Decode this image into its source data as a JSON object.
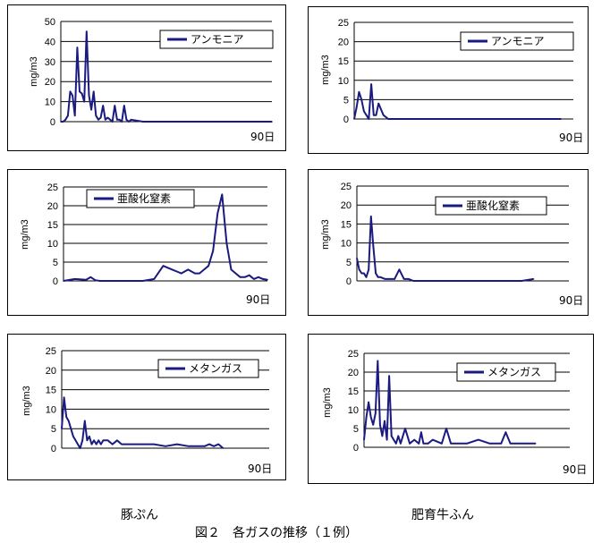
{
  "colors": {
    "series": "#1a1a80",
    "grid": "#000000"
  },
  "captions": {
    "left": "豚ぷん",
    "right": "肥育牛ふん",
    "figure": "図２　各ガスの推移（１例）"
  },
  "chart_data": [
    {
      "type": "line",
      "ylabel": "mg/m3",
      "xlabel": "90日",
      "ylim": [
        0,
        50
      ],
      "yticks": [
        0,
        10,
        20,
        30,
        40,
        50
      ],
      "xlim": [
        0,
        90
      ],
      "legend": "top-right",
      "series": [
        {
          "name": "アンモニア",
          "x": [
            0,
            1,
            2,
            3,
            4,
            5,
            6,
            7,
            8,
            9,
            10,
            11,
            12,
            13,
            14,
            15,
            16,
            17,
            18,
            19,
            20,
            21,
            22,
            23,
            24,
            25,
            26,
            27,
            28,
            29,
            30,
            35,
            40,
            45,
            50,
            55,
            60,
            65,
            70,
            75,
            80,
            85,
            90
          ],
          "values": [
            0,
            0,
            1,
            3,
            15,
            13,
            3,
            37,
            15,
            14,
            10,
            45,
            13,
            6,
            15,
            3,
            1,
            2,
            8,
            1,
            2,
            1,
            0,
            8,
            1,
            1,
            0,
            8,
            1,
            0,
            1,
            0,
            0,
            0,
            0,
            0,
            0,
            0,
            0,
            0,
            0,
            0,
            0
          ]
        }
      ]
    },
    {
      "type": "line",
      "ylabel": "mg/m3",
      "xlabel": "90日",
      "ylim": [
        0,
        25
      ],
      "yticks": [
        0,
        5,
        10,
        15,
        20,
        25
      ],
      "xlim": [
        0,
        90
      ],
      "legend": "top-right",
      "series": [
        {
          "name": "アンモニア",
          "x": [
            0,
            1,
            2,
            3,
            4,
            5,
            6,
            7,
            8,
            9,
            10,
            12,
            14,
            16,
            20,
            30,
            40,
            50,
            60,
            70,
            80,
            85
          ],
          "values": [
            0,
            3,
            7,
            5,
            2,
            1,
            0,
            9,
            1,
            1,
            4,
            1,
            0,
            0,
            0,
            0,
            0,
            0,
            0,
            0,
            0,
            0
          ]
        }
      ]
    },
    {
      "type": "line",
      "ylabel": "mg/m3",
      "xlabel": "90日",
      "ylim": [
        0,
        25
      ],
      "yticks": [
        0,
        5,
        10,
        15,
        20,
        25
      ],
      "xlim": [
        0,
        90
      ],
      "legend": "top-left",
      "series": [
        {
          "name": "亜酸化窒素",
          "x": [
            0,
            5,
            10,
            12,
            14,
            16,
            20,
            25,
            30,
            35,
            40,
            44,
            46,
            48,
            50,
            52,
            55,
            58,
            60,
            62,
            64,
            66,
            68,
            70,
            72,
            74,
            76,
            78,
            80,
            82,
            84,
            86,
            88,
            90
          ],
          "values": [
            0,
            0.5,
            0.3,
            1,
            0.2,
            0,
            0,
            0,
            0,
            0,
            0.5,
            4,
            3.5,
            3,
            2.5,
            2,
            3,
            2,
            2,
            3,
            4,
            8,
            18,
            23,
            10,
            3,
            2,
            1,
            1,
            1.5,
            0.5,
            1,
            0.5,
            0.3
          ]
        }
      ]
    },
    {
      "type": "line",
      "ylabel": "mg/m3",
      "xlabel": "90日",
      "ylim": [
        0,
        25
      ],
      "yticks": [
        0,
        5,
        10,
        15,
        20,
        25
      ],
      "xlim": [
        0,
        90
      ],
      "legend": "top-right",
      "series": [
        {
          "name": "亜酸化窒素",
          "x": [
            0,
            1,
            2,
            3,
            4,
            5,
            6,
            7,
            8,
            9,
            10,
            12,
            14,
            16,
            18,
            20,
            22,
            24,
            30,
            40,
            50,
            60,
            70,
            75
          ],
          "values": [
            6,
            3,
            2,
            2,
            1,
            3,
            17,
            9,
            2,
            1,
            1,
            0.5,
            0.5,
            0.5,
            3,
            0.5,
            0.5,
            0,
            0,
            0,
            0,
            0,
            0,
            0.5
          ]
        }
      ]
    },
    {
      "type": "line",
      "ylabel": "mg/m3",
      "xlabel": "90日",
      "ylim": [
        0,
        25
      ],
      "yticks": [
        0,
        5,
        10,
        15,
        20,
        25
      ],
      "xlim": [
        0,
        90
      ],
      "legend": "top-right",
      "series": [
        {
          "name": "メタンガス",
          "x": [
            0,
            1,
            2,
            3,
            4,
            5,
            6,
            7,
            8,
            9,
            10,
            11,
            12,
            13,
            14,
            15,
            16,
            17,
            18,
            20,
            22,
            24,
            26,
            28,
            30,
            35,
            40,
            45,
            50,
            55,
            60,
            62,
            64,
            66,
            68,
            70
          ],
          "values": [
            5,
            13,
            8,
            7,
            5,
            3,
            2,
            1,
            0,
            2,
            7,
            2,
            3,
            1,
            2,
            1,
            2,
            1,
            2,
            2,
            1,
            2,
            1,
            1,
            1,
            1,
            1,
            0.5,
            1,
            0.5,
            0.5,
            0.5,
            1,
            0.5,
            1,
            0
          ]
        }
      ]
    },
    {
      "type": "line",
      "ylabel": "mg/m3",
      "xlabel": "90日",
      "ylim": [
        0,
        25
      ],
      "yticks": [
        0,
        5,
        10,
        15,
        20,
        25
      ],
      "xlim": [
        0,
        90
      ],
      "legend": "top-right",
      "series": [
        {
          "name": "メタンガス",
          "x": [
            0,
            1,
            2,
            3,
            4,
            5,
            6,
            7,
            8,
            9,
            10,
            11,
            12,
            13,
            14,
            15,
            16,
            18,
            20,
            22,
            24,
            25,
            26,
            28,
            30,
            34,
            36,
            38,
            40,
            45,
            50,
            55,
            60,
            62,
            64,
            66,
            70,
            75
          ],
          "values": [
            2,
            8,
            12,
            8,
            6,
            9,
            23,
            6,
            3,
            7,
            2,
            19,
            3,
            2,
            1,
            3,
            1,
            5,
            1,
            2,
            1,
            4,
            1,
            1,
            2,
            1,
            5,
            1,
            1,
            1,
            2,
            1,
            1,
            4,
            1,
            1,
            1,
            1
          ]
        }
      ]
    }
  ]
}
